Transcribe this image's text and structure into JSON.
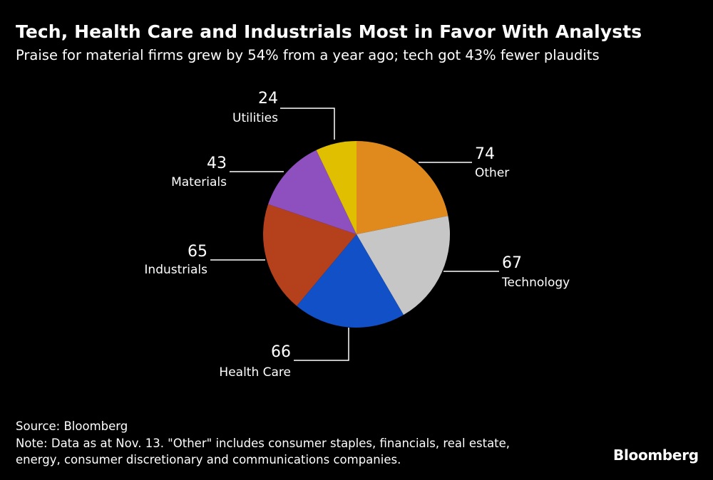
{
  "header": {
    "title": "Tech, Health Care and Industrials Most in Favor With Analysts",
    "subtitle": "Praise for material firms grew by 54% from a year ago; tech got 43% fewer plaudits"
  },
  "chart_data": {
    "type": "pie",
    "start_angle_deg": 0,
    "direction": "clockwise",
    "slices": [
      {
        "key": "other",
        "label": "Other",
        "value": 74,
        "color": "#e08a1e"
      },
      {
        "key": "technology",
        "label": "Technology",
        "value": 67,
        "color": "#c6c6c6"
      },
      {
        "key": "health-care",
        "label": "Health Care",
        "value": 66,
        "color": "#1250c8"
      },
      {
        "key": "industrials",
        "label": "Industrials",
        "value": 65,
        "color": "#b5401c"
      },
      {
        "key": "materials",
        "label": "Materials",
        "value": 43,
        "color": "#8e4fbf"
      },
      {
        "key": "utilities",
        "label": "Utilities",
        "value": 24,
        "color": "#dfbf00"
      }
    ]
  },
  "footer": {
    "source": "Source: Bloomberg",
    "note": "Note: Data as at Nov. 13. \"Other\" includes consumer staples, financials, real estate, energy, consumer discretionary and communications companies.",
    "brand": "Bloomberg"
  }
}
